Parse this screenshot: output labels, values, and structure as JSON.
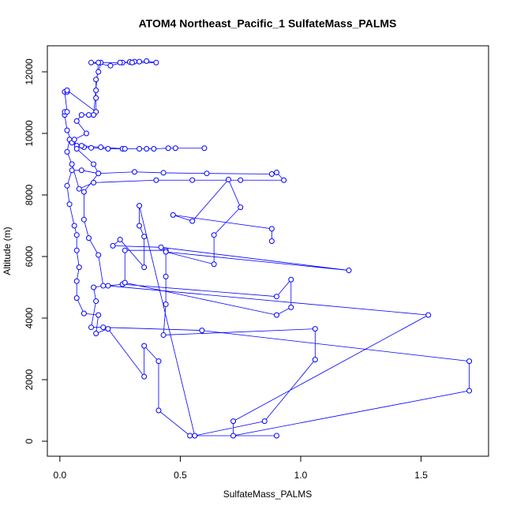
{
  "chart_data": {
    "type": "line",
    "title": "ATOM4 Northeast_Pacific_1 SulfateMass_PALMS",
    "x_label": "SulfateMass_PALMS",
    "y_label": "Altitude (m)",
    "color": "#0000ff",
    "marker": "open-circle",
    "xlim": [
      -0.052,
      1.78
    ],
    "ylim": [
      -487,
      12846
    ],
    "xticks": [
      {
        "value": 0,
        "label": "0.0"
      },
      {
        "value": 0.5,
        "label": "0.5"
      },
      {
        "value": 1,
        "label": "1.0"
      },
      {
        "value": 1.5,
        "label": "1.5"
      }
    ],
    "yticks": [
      0,
      2000,
      4000,
      6000,
      8000,
      10000,
      12000
    ],
    "x": [
      0.9,
      0.54,
      0.41,
      0.41,
      0.35,
      0.35,
      0.2,
      0.15,
      0.16,
      0.1,
      0.07,
      0.07,
      0.08,
      0.07,
      0.07,
      0.06,
      0.04,
      0.03,
      0.05,
      0.09,
      0.16,
      0.31,
      0.43,
      0.61,
      0.88,
      0.9,
      0.93,
      0.75,
      0.55,
      0.4,
      0.14,
      0.08,
      0.05,
      0.03,
      0.04,
      0.07,
      0.1,
      0.13,
      0.2,
      0.26,
      0.33,
      0.39,
      0.45,
      0.6,
      0.48,
      0.36,
      0.27,
      0.17,
      0.09,
      0.05,
      0.03,
      0.02,
      0.02,
      0.03,
      0.02,
      0.03,
      0.03,
      0.15,
      0.15,
      0.15,
      0.15,
      0.16,
      0.17,
      0.13,
      0.21,
      0.26,
      0.29,
      0.31,
      0.33,
      0.36,
      0.4,
      0.3,
      0.25,
      0.16,
      0.14,
      0.12,
      0.09,
      0.07,
      0.11,
      0.06,
      0.07,
      0.14,
      0.16,
      0.1,
      0.1,
      0.12,
      0.16,
      0.18,
      0.14,
      0.15,
      0.13,
      0.18,
      0.59,
      1.7,
      1.7,
      0.72,
      0.72,
      1.53,
      0.2,
      0.26,
      0.9,
      0.96,
      0.96,
      0.9,
      0.27,
      0.27,
      0.44,
      0.44,
      0.44,
      0.43,
      1.06,
      1.06,
      0.85,
      0.56,
      0.33,
      0.33,
      0.35,
      0.35,
      0.25,
      0.22,
      0.42,
      1.2,
      0.44,
      0.64,
      0.64,
      0.75,
      0.7,
      0.55,
      0.47,
      0.88,
      0.88
    ],
    "values": [
      180,
      180,
      1000,
      2600,
      3100,
      2100,
      3650,
      3500,
      4100,
      4150,
      4650,
      5200,
      5650,
      6200,
      6700,
      7000,
      7700,
      8300,
      8800,
      8800,
      8700,
      8750,
      8720,
      8700,
      8680,
      8730,
      8480,
      8480,
      8480,
      8480,
      8400,
      8200,
      9000,
      9400,
      9800,
      9600,
      9550,
      9530,
      9500,
      9500,
      9500,
      9500,
      9520,
      9520,
      9520,
      9500,
      9500,
      9550,
      9600,
      9700,
      10100,
      10600,
      10700,
      10700,
      11350,
      11350,
      11400,
      10700,
      11150,
      11400,
      11750,
      12000,
      12300,
      12300,
      12200,
      12300,
      12320,
      12330,
      12330,
      12350,
      12300,
      12300,
      12300,
      12300,
      10600,
      10600,
      10600,
      10400,
      10000,
      9800,
      9500,
      9000,
      8700,
      8100,
      7200,
      6600,
      6050,
      5050,
      5000,
      4550,
      3700,
      3700,
      3600,
      2600,
      1640,
      180,
      650,
      4100,
      5050,
      5100,
      4700,
      5250,
      4350,
      4100,
      5150,
      6200,
      6200,
      5350,
      4450,
      3450,
      3650,
      2650,
      650,
      180,
      7650,
      7000,
      6650,
      5650,
      6550,
      6350,
      6300,
      5550,
      6150,
      5750,
      6700,
      7600,
      8500,
      7150,
      7350,
      6900,
      6500
    ]
  }
}
